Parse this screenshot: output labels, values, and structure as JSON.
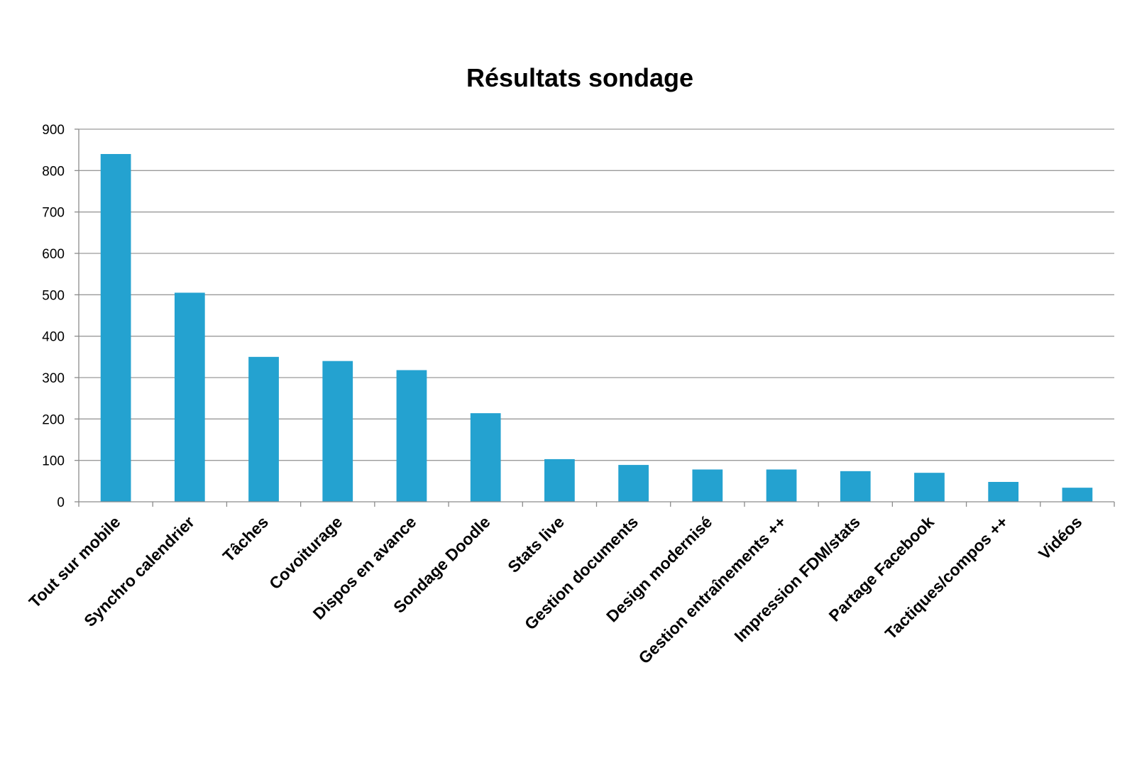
{
  "chart_data": {
    "type": "bar",
    "title": "Résultats sondage",
    "xlabel": "",
    "ylabel": "",
    "ylim": [
      0,
      900
    ],
    "yticks": [
      0,
      100,
      200,
      300,
      400,
      500,
      600,
      700,
      800,
      900
    ],
    "grid": true,
    "legend": "none",
    "categories": [
      "Tout sur mobile",
      "Synchro calendrier",
      "Tâches",
      "Covoiturage",
      "Dispos en avance",
      "Sondage Doodle",
      "Stats live",
      "Gestion documents",
      "Design modernisé",
      "Gestion entraînements ++",
      "Impression FDM/stats",
      "Partage Facebook",
      "Tactiques/compos ++",
      "Vidéos"
    ],
    "values": [
      840,
      505,
      350,
      340,
      318,
      214,
      103,
      89,
      78,
      78,
      74,
      70,
      48,
      34
    ],
    "colors": {
      "bar": "#24a2d0",
      "grid": "#9a9a9a",
      "axis": "#8c8c8c"
    }
  }
}
